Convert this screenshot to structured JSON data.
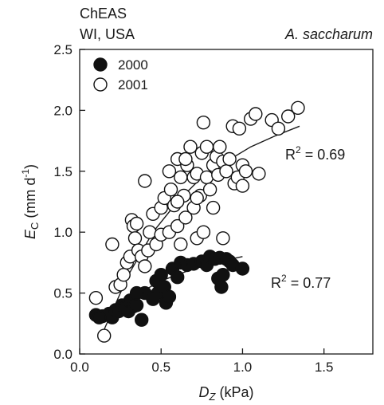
{
  "chart_data": {
    "type": "scatter",
    "site": "ChEAS",
    "location": "WI, USA",
    "species": "A. saccharum",
    "xlabel": {
      "main": "D",
      "sub": "Z",
      "unit": " (kPa)"
    },
    "ylabel": {
      "main": "E",
      "sub": "C",
      "unit_pre": " (mm d",
      "unit_sup": "-1",
      "unit_post": ")"
    },
    "xlim": [
      0,
      1.8
    ],
    "ylim": [
      0,
      2.5
    ],
    "xticks": [
      "0.0",
      "0.5",
      "1.0",
      "1.5"
    ],
    "yticks": [
      "0.0",
      "0.5",
      "1.0",
      "1.5",
      "2.0",
      "2.5"
    ],
    "grid": false,
    "legend": {
      "placement": "top-left"
    },
    "series": [
      {
        "name": "2000",
        "marker": "filled-circle",
        "color": "#111111",
        "points": [
          [
            0.1,
            0.32
          ],
          [
            0.14,
            0.31
          ],
          [
            0.18,
            0.33
          ],
          [
            0.2,
            0.3
          ],
          [
            0.22,
            0.36
          ],
          [
            0.24,
            0.35
          ],
          [
            0.26,
            0.4
          ],
          [
            0.28,
            0.38
          ],
          [
            0.3,
            0.35
          ],
          [
            0.31,
            0.44
          ],
          [
            0.33,
            0.39
          ],
          [
            0.35,
            0.4
          ],
          [
            0.38,
            0.28
          ],
          [
            0.4,
            0.5
          ],
          [
            0.47,
            0.6
          ],
          [
            0.48,
            0.5
          ],
          [
            0.5,
            0.65
          ],
          [
            0.52,
            0.55
          ],
          [
            0.53,
            0.42
          ],
          [
            0.55,
            0.47
          ],
          [
            0.57,
            0.7
          ],
          [
            0.6,
            0.63
          ],
          [
            0.62,
            0.75
          ],
          [
            0.66,
            0.73
          ],
          [
            0.7,
            0.74
          ],
          [
            0.75,
            0.76
          ],
          [
            0.78,
            0.73
          ],
          [
            0.8,
            0.8
          ],
          [
            0.83,
            0.78
          ],
          [
            0.85,
            0.62
          ],
          [
            0.86,
            0.79
          ],
          [
            0.87,
            0.55
          ],
          [
            0.88,
            0.65
          ],
          [
            0.9,
            0.78
          ],
          [
            0.92,
            0.76
          ],
          [
            0.94,
            0.73
          ],
          [
            1.0,
            0.7
          ],
          [
            0.12,
            0.3
          ],
          [
            0.35,
            0.5
          ],
          [
            0.45,
            0.45
          ]
        ],
        "fit": {
          "x": [
            0.1,
            0.3,
            0.5,
            0.7,
            0.9,
            1.0
          ],
          "y": [
            0.3,
            0.45,
            0.6,
            0.7,
            0.77,
            0.8
          ]
        },
        "r2_label": "R",
        "r2_sup": "2",
        "r2_text": " = 0.77",
        "r2_value": 0.77
      },
      {
        "name": "2001",
        "marker": "open-circle",
        "color": "#111111",
        "points": [
          [
            0.1,
            0.46
          ],
          [
            0.15,
            0.15
          ],
          [
            0.2,
            0.9
          ],
          [
            0.22,
            0.55
          ],
          [
            0.25,
            0.57
          ],
          [
            0.27,
            0.65
          ],
          [
            0.29,
            0.75
          ],
          [
            0.31,
            0.8
          ],
          [
            0.32,
            1.1
          ],
          [
            0.33,
            1.05
          ],
          [
            0.34,
            0.95
          ],
          [
            0.36,
            0.85
          ],
          [
            0.38,
            0.8
          ],
          [
            0.4,
            0.72
          ],
          [
            0.4,
            1.42
          ],
          [
            0.42,
            0.85
          ],
          [
            0.43,
            1.0
          ],
          [
            0.45,
            1.15
          ],
          [
            0.47,
            0.9
          ],
          [
            0.5,
            1.2
          ],
          [
            0.5,
            0.98
          ],
          [
            0.52,
            1.28
          ],
          [
            0.55,
            1.0
          ],
          [
            0.56,
            1.35
          ],
          [
            0.58,
            1.22
          ],
          [
            0.6,
            1.05
          ],
          [
            0.6,
            1.6
          ],
          [
            0.62,
            1.45
          ],
          [
            0.62,
            0.9
          ],
          [
            0.64,
            1.3
          ],
          [
            0.65,
            1.12
          ],
          [
            0.66,
            1.55
          ],
          [
            0.68,
            1.7
          ],
          [
            0.7,
            1.2
          ],
          [
            0.7,
            1.45
          ],
          [
            0.72,
            1.48
          ],
          [
            0.72,
            0.95
          ],
          [
            0.74,
            1.3
          ],
          [
            0.75,
            1.65
          ],
          [
            0.76,
            1.9
          ],
          [
            0.76,
            1.0
          ],
          [
            0.78,
            1.45
          ],
          [
            0.78,
            1.7
          ],
          [
            0.8,
            1.35
          ],
          [
            0.82,
            1.55
          ],
          [
            0.82,
            1.2
          ],
          [
            0.84,
            1.62
          ],
          [
            0.85,
            1.47
          ],
          [
            0.86,
            1.7
          ],
          [
            0.88,
            0.95
          ],
          [
            0.88,
            1.58
          ],
          [
            0.9,
            1.5
          ],
          [
            0.92,
            1.6
          ],
          [
            0.94,
            1.87
          ],
          [
            0.95,
            1.4
          ],
          [
            0.97,
            1.45
          ],
          [
            0.98,
            1.85
          ],
          [
            1.0,
            1.38
          ],
          [
            1.0,
            1.55
          ],
          [
            1.02,
            1.5
          ],
          [
            1.05,
            1.93
          ],
          [
            1.08,
            1.97
          ],
          [
            1.1,
            1.48
          ],
          [
            1.18,
            1.92
          ],
          [
            1.22,
            1.85
          ],
          [
            1.28,
            1.95
          ],
          [
            1.34,
            2.02
          ],
          [
            0.35,
            1.07
          ],
          [
            0.55,
            1.5
          ],
          [
            0.65,
            1.6
          ],
          [
            0.72,
            1.28
          ],
          [
            0.6,
            1.25
          ]
        ],
        "fit": {
          "x": [
            0.15,
            0.3,
            0.45,
            0.6,
            0.75,
            0.9,
            1.05,
            1.2,
            1.35
          ],
          "y": [
            0.2,
            0.65,
            1.0,
            1.25,
            1.45,
            1.58,
            1.7,
            1.79,
            1.87
          ]
        },
        "r2_label": "R",
        "r2_sup": "2",
        "r2_text": " = 0.69",
        "r2_value": 0.69
      }
    ]
  }
}
